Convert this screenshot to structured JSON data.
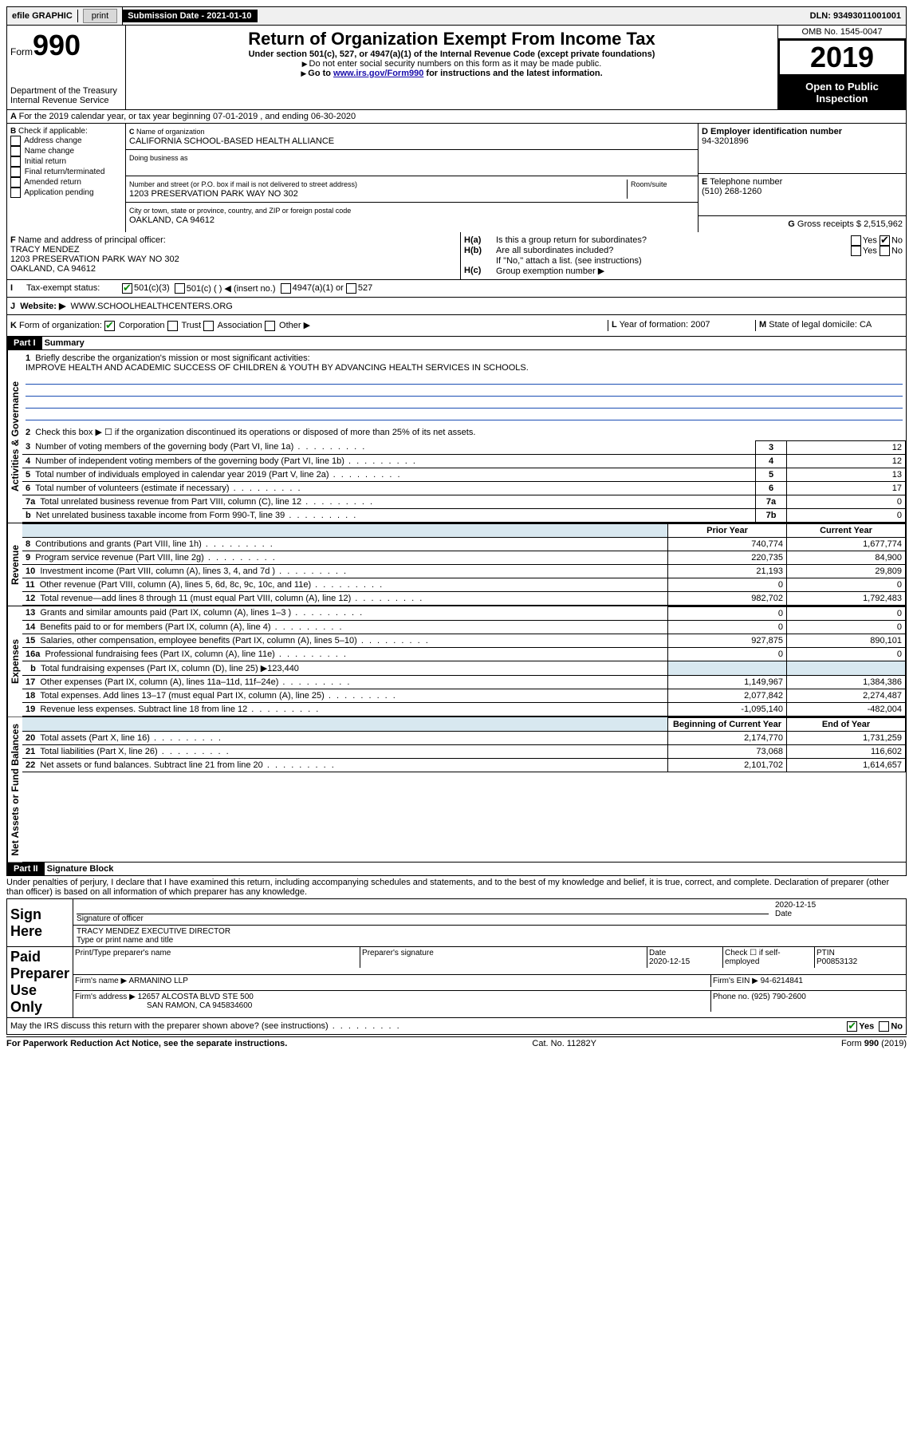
{
  "topbar": {
    "efile": "efile GRAPHIC",
    "print": "print",
    "submission_label": "Submission Date - ",
    "submission_date": "2021-01-10",
    "dln_label": "DLN: ",
    "dln": "93493011001001"
  },
  "header": {
    "form_word": "Form",
    "form_num": "990",
    "dept": "Department of the Treasury",
    "irs": "Internal Revenue Service",
    "title": "Return of Organization Exempt From Income Tax",
    "subtitle": "Under section 501(c), 527, or 4947(a)(1) of the Internal Revenue Code (except private foundations)",
    "note1": "Do not enter social security numbers on this form as it may be made public.",
    "note2_pre": "Go to ",
    "note2_link": "www.irs.gov/Form990",
    "note2_post": " for instructions and the latest information.",
    "omb": "OMB No. 1545-0047",
    "year": "2019",
    "open": "Open to Public Inspection"
  },
  "lineA": "For the 2019 calendar year, or tax year beginning 07-01-2019    , and ending 06-30-2020",
  "boxB": {
    "label": "Check if applicable:",
    "opts": [
      "Address change",
      "Name change",
      "Initial return",
      "Final return/terminated",
      "Amended return",
      "Application pending"
    ]
  },
  "boxC": {
    "name_label": "Name of organization",
    "name": "CALIFORNIA SCHOOL-BASED HEALTH ALLIANCE",
    "dba_label": "Doing business as",
    "addr_label": "Number and street (or P.O. box if mail is not delivered to street address)",
    "room_label": "Room/suite",
    "addr": "1203 PRESERVATION PARK WAY NO 302",
    "city_label": "City or town, state or province, country, and ZIP or foreign postal code",
    "city": "OAKLAND, CA  94612"
  },
  "boxD": {
    "label": "Employer identification number",
    "val": "94-3201896"
  },
  "boxE": {
    "label": "Telephone number",
    "val": "(510) 268-1260"
  },
  "boxG": {
    "label": "Gross receipts $ ",
    "val": "2,515,962"
  },
  "boxF": {
    "label": "Name and address of principal officer:",
    "name": "TRACY MENDEZ",
    "addr1": "1203 PRESERVATION PARK WAY NO 302",
    "addr2": "OAKLAND, CA  94612"
  },
  "boxH": {
    "a": "Is this a group return for subordinates?",
    "b": "Are all subordinates included?",
    "note": "If \"No,\" attach a list. (see instructions)",
    "c": "Group exemption number ▶",
    "yes": "Yes",
    "no": "No"
  },
  "taxExempt": {
    "label": "Tax-exempt status:",
    "c3": "501(c)(3)",
    "c": "501(c) (   ) ◀ (insert no.)",
    "a1": "4947(a)(1) or",
    "s527": "527"
  },
  "website": {
    "label": "Website: ▶",
    "val": "WWW.SCHOOLHEALTHCENTERS.ORG"
  },
  "lineK": {
    "label": "Form of organization:",
    "opts": [
      "Corporation",
      "Trust",
      "Association",
      "Other ▶"
    ]
  },
  "lineL": {
    "label": "Year of formation: ",
    "val": "2007"
  },
  "lineM": {
    "label": "State of legal domicile: ",
    "val": "CA"
  },
  "part1": {
    "label": "Part I",
    "title": "Summary",
    "vlabels": {
      "gov": "Activities & Governance",
      "rev": "Revenue",
      "exp": "Expenses",
      "net": "Net Assets or Fund Balances"
    },
    "l1": "Briefly describe the organization's mission or most significant activities:",
    "mission": "IMPROVE HEALTH AND ACADEMIC SUCCESS OF CHILDREN & YOUTH BY ADVANCING HEALTH SERVICES IN SCHOOLS.",
    "l2": "Check this box ▶ ☐  if the organization discontinued its operations or disposed of more than 25% of its net assets.",
    "rows_gov": [
      {
        "n": "3",
        "t": "Number of voting members of the governing body (Part VI, line 1a)",
        "b": "3",
        "v": "12"
      },
      {
        "n": "4",
        "t": "Number of independent voting members of the governing body (Part VI, line 1b)",
        "b": "4",
        "v": "12"
      },
      {
        "n": "5",
        "t": "Total number of individuals employed in calendar year 2019 (Part V, line 2a)",
        "b": "5",
        "v": "13"
      },
      {
        "n": "6",
        "t": "Total number of volunteers (estimate if necessary)",
        "b": "6",
        "v": "17"
      },
      {
        "n": "7a",
        "t": "Total unrelated business revenue from Part VIII, column (C), line 12",
        "b": "7a",
        "v": "0"
      },
      {
        "n": "b",
        "t": "Net unrelated business taxable income from Form 990-T, line 39",
        "b": "7b",
        "v": "0"
      }
    ],
    "hdr_prior": "Prior Year",
    "hdr_curr": "Current Year",
    "rows_rev": [
      {
        "n": "8",
        "t": "Contributions and grants (Part VIII, line 1h)",
        "p": "740,774",
        "c": "1,677,774"
      },
      {
        "n": "9",
        "t": "Program service revenue (Part VIII, line 2g)",
        "p": "220,735",
        "c": "84,900"
      },
      {
        "n": "10",
        "t": "Investment income (Part VIII, column (A), lines 3, 4, and 7d )",
        "p": "21,193",
        "c": "29,809"
      },
      {
        "n": "11",
        "t": "Other revenue (Part VIII, column (A), lines 5, 6d, 8c, 9c, 10c, and 11e)",
        "p": "0",
        "c": "0"
      },
      {
        "n": "12",
        "t": "Total revenue—add lines 8 through 11 (must equal Part VIII, column (A), line 12)",
        "p": "982,702",
        "c": "1,792,483"
      }
    ],
    "rows_exp": [
      {
        "n": "13",
        "t": "Grants and similar amounts paid (Part IX, column (A), lines 1–3 )",
        "p": "0",
        "c": "0"
      },
      {
        "n": "14",
        "t": "Benefits paid to or for members (Part IX, column (A), line 4)",
        "p": "0",
        "c": "0"
      },
      {
        "n": "15",
        "t": "Salaries, other compensation, employee benefits (Part IX, column (A), lines 5–10)",
        "p": "927,875",
        "c": "890,101"
      },
      {
        "n": "16a",
        "t": "Professional fundraising fees (Part IX, column (A), line 11e)",
        "p": "0",
        "c": "0"
      }
    ],
    "l16b": "Total fundraising expenses (Part IX, column (D), line 25) ▶123,440",
    "rows_exp2": [
      {
        "n": "17",
        "t": "Other expenses (Part IX, column (A), lines 11a–11d, 11f–24e)",
        "p": "1,149,967",
        "c": "1,384,386"
      },
      {
        "n": "18",
        "t": "Total expenses. Add lines 13–17 (must equal Part IX, column (A), line 25)",
        "p": "2,077,842",
        "c": "2,274,487"
      },
      {
        "n": "19",
        "t": "Revenue less expenses. Subtract line 18 from line 12",
        "p": "-1,095,140",
        "c": "-482,004"
      }
    ],
    "hdr_beg": "Beginning of Current Year",
    "hdr_end": "End of Year",
    "rows_net": [
      {
        "n": "20",
        "t": "Total assets (Part X, line 16)",
        "p": "2,174,770",
        "c": "1,731,259"
      },
      {
        "n": "21",
        "t": "Total liabilities (Part X, line 26)",
        "p": "73,068",
        "c": "116,602"
      },
      {
        "n": "22",
        "t": "Net assets or fund balances. Subtract line 21 from line 20",
        "p": "2,101,702",
        "c": "1,614,657"
      }
    ]
  },
  "part2": {
    "label": "Part II",
    "title": "Signature Block",
    "perjury": "Under penalties of perjury, I declare that I have examined this return, including accompanying schedules and statements, and to the best of my knowledge and belief, it is true, correct, and complete. Declaration of preparer (other than officer) is based on all information of which preparer has any knowledge.",
    "sign_here": "Sign Here",
    "sig_officer": "Signature of officer",
    "date": "2020-12-15",
    "date_label": "Date",
    "officer_name": "TRACY MENDEZ  EXECUTIVE DIRECTOR",
    "type_name": "Type or print name and title",
    "paid": "Paid Preparer Use Only",
    "prep_name_label": "Print/Type preparer's name",
    "prep_sig_label": "Preparer's signature",
    "prep_date": "2020-12-15",
    "check_self": "Check ☐ if self-employed",
    "ptin_label": "PTIN",
    "ptin": "P00853132",
    "firm_name_label": "Firm's name    ▶ ",
    "firm_name": "ARMANINO LLP",
    "firm_ein_label": "Firm's EIN ▶ ",
    "firm_ein": "94-6214841",
    "firm_addr_label": "Firm's address ▶ ",
    "firm_addr1": "12657 ALCOSTA BLVD STE 500",
    "firm_addr2": "SAN RAMON, CA  945834600",
    "phone_label": "Phone no. ",
    "phone": "(925) 790-2600",
    "discuss": "May the IRS discuss this return with the preparer shown above? (see instructions)"
  },
  "footer": {
    "pra": "For Paperwork Reduction Act Notice, see the separate instructions.",
    "cat": "Cat. No. 11282Y",
    "form": "Form 990 (2019)"
  }
}
